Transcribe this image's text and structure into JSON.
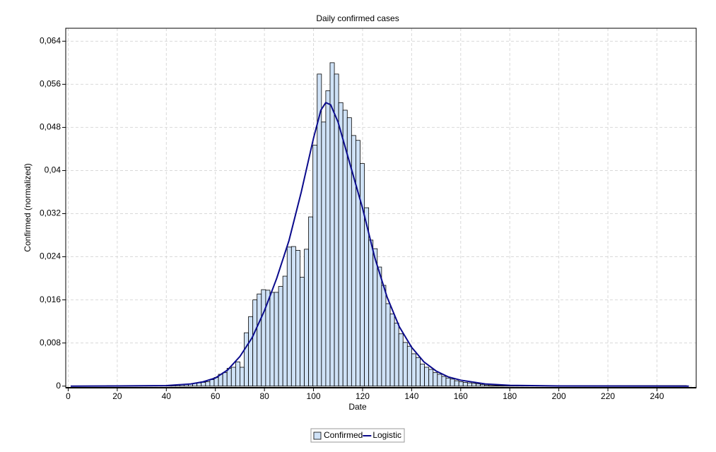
{
  "chart_data": {
    "type": "histogram",
    "title": "Daily confirmed cases",
    "x_label": "Date",
    "y_label": "Confirmed (normalized)",
    "xlim": [
      -1,
      256
    ],
    "ylim": [
      -0.0003,
      0.0664
    ],
    "xticks": [
      0,
      20,
      40,
      60,
      80,
      100,
      120,
      140,
      160,
      180,
      200,
      220,
      240
    ],
    "yticks": [
      0,
      {
        "value": 0.008,
        "label": "0,008"
      },
      {
        "value": 0.016,
        "label": "0,016"
      },
      {
        "value": 0.024,
        "label": "0,024"
      },
      {
        "value": 0.032,
        "label": "0,032"
      },
      {
        "value": 0.04,
        "label": "0,04"
      },
      {
        "value": 0.048,
        "label": "0,048"
      },
      {
        "value": 0.056,
        "label": "0,056"
      },
      {
        "value": 0.064,
        "label": "0,064"
      }
    ],
    "grid": true,
    "legend": "bottom",
    "bins": [
      15.75,
      42,
      43.75,
      45.5,
      47.25,
      49,
      50.75,
      52.5,
      54.25,
      56,
      57.75,
      59.5,
      61.25,
      63,
      64.75,
      66.5,
      68.25,
      70,
      71.75,
      73.5,
      75.25,
      77,
      78.75,
      80.5,
      82.25,
      84,
      85.75,
      87.5,
      89.25,
      91,
      92.75,
      94.5,
      96.25,
      98,
      99.75,
      101.5,
      103.25,
      105,
      106.75,
      108.5,
      110.25,
      112,
      113.75,
      115.5,
      117.25,
      119,
      120.75,
      122.5,
      124.25,
      126,
      127.75,
      129.5,
      131.25,
      133,
      134.75,
      136.5,
      138.25,
      140,
      141.75,
      143.5,
      145.25,
      147,
      148.75,
      150.5,
      152.25,
      154,
      155.75,
      157.5,
      159.25,
      161,
      162.75,
      164.5,
      166.25,
      168,
      169.75,
      171.5,
      252
    ],
    "series": [
      {
        "name": "Confirmed",
        "type": "histogram",
        "color": "#cfe2f7",
        "values": [
          0.0001,
          0.0002,
          0.0002,
          0.0003,
          0.0003,
          0.0004,
          0.0005,
          0.0006,
          0.0007,
          0.0008,
          0.0012,
          0.0016,
          0.0022,
          0.0025,
          0.0033,
          0.0035,
          0.0045,
          0.0035,
          0.0099,
          0.0129,
          0.016,
          0.0171,
          0.0179,
          0.0178,
          0.0174,
          0.0174,
          0.0185,
          0.0204,
          0.0258,
          0.0259,
          0.0252,
          0.0202,
          0.0254,
          0.0314,
          0.0447,
          0.0579,
          0.049,
          0.0548,
          0.06,
          0.0579,
          0.0526,
          0.0512,
          0.0498,
          0.0465,
          0.0456,
          0.0413,
          0.0331,
          0.0271,
          0.0255,
          0.0221,
          0.0187,
          0.0153,
          0.0134,
          0.0117,
          0.0097,
          0.0081,
          0.0074,
          0.006,
          0.0053,
          0.0041,
          0.0035,
          0.0031,
          0.0025,
          0.0022,
          0.0018,
          0.0015,
          0.0013,
          0.001,
          0.0008,
          0.0007,
          0.0006,
          0.0005,
          0.0004,
          0.0003,
          0.0002,
          0.0001
        ]
      },
      {
        "name": "Logistic",
        "type": "line",
        "color": "#0a0a8c",
        "x": [
          1,
          20,
          40,
          50,
          55,
          60,
          65,
          70,
          75,
          80,
          85,
          90,
          95,
          100,
          103,
          105,
          107,
          110,
          115,
          120,
          125,
          130,
          135,
          140,
          145,
          150,
          155,
          160,
          170,
          180,
          200,
          253
        ],
        "values": [
          0,
          2e-05,
          0.0001,
          0.0004,
          0.0008,
          0.0015,
          0.003,
          0.0055,
          0.009,
          0.014,
          0.02,
          0.027,
          0.036,
          0.046,
          0.0512,
          0.0526,
          0.0522,
          0.049,
          0.041,
          0.033,
          0.0238,
          0.0165,
          0.011,
          0.0072,
          0.0045,
          0.0028,
          0.0017,
          0.0011,
          0.0004,
          0.00015,
          3e-05,
          0
        ]
      }
    ]
  }
}
